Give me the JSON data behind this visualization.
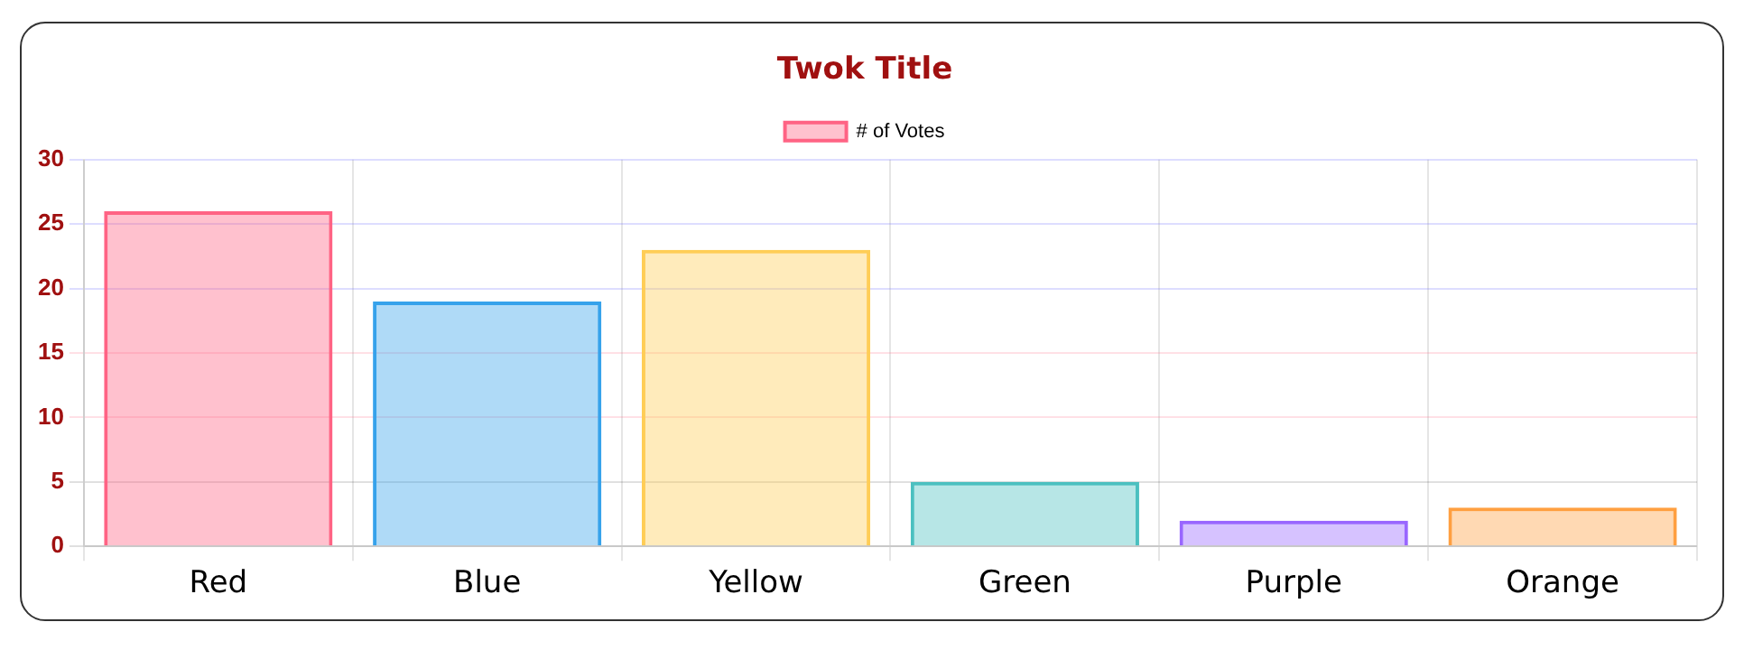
{
  "chart_data": {
    "type": "bar",
    "title": "Twok Title",
    "categories": [
      "Red",
      "Blue",
      "Yellow",
      "Green",
      "Purple",
      "Orange"
    ],
    "series": [
      {
        "name": "# of Votes",
        "values": [
          26,
          19,
          23,
          5,
          2,
          3
        ],
        "colors": [
          "#ff6384",
          "#36a2eb",
          "#ffcd56",
          "#4bc0c0",
          "#9966ff",
          "#ff9f40"
        ]
      }
    ],
    "ylim": [
      0,
      30
    ],
    "yticks": [
      0,
      5,
      10,
      15,
      20,
      25,
      30
    ],
    "grid": true,
    "legend": "top"
  }
}
